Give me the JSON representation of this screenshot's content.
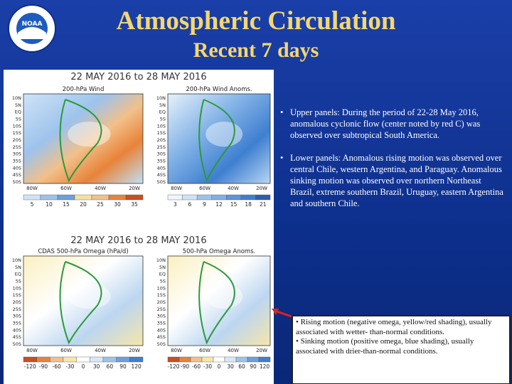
{
  "header": {
    "title": "Atmospheric Circulation",
    "subtitle": "Recent 7 days",
    "logo": "NOAA"
  },
  "figure": {
    "lat_labels": [
      "10N",
      "5N",
      "EQ",
      "5S",
      "10S",
      "15S",
      "20S",
      "25S",
      "30S",
      "35S",
      "40S",
      "45S",
      "50S"
    ],
    "lon_labels": [
      "80W",
      "60W",
      "40W",
      "20W"
    ],
    "upper": {
      "date": "22 MAY 2016 to 28 MAY 2016",
      "panels": [
        {
          "title": "200-hPa Wind",
          "colorbar": [
            "5",
            "10",
            "15",
            "20",
            "25",
            "30",
            "35"
          ]
        },
        {
          "title": "200-hPa Wind Anoms.",
          "colorbar": [
            "3",
            "6",
            "9",
            "12",
            "15",
            "18",
            "21"
          ]
        }
      ]
    },
    "lower": {
      "date": "22 MAY 2016 to 28 MAY 2016",
      "panels": [
        {
          "title": "CDAS 500-hPa Omega (hPa/d)",
          "colorbar": [
            "-120",
            "-90",
            "-60",
            "-30",
            "0",
            "30",
            "60",
            "90",
            "120"
          ]
        },
        {
          "title": "500-hPa Omega Anoms.",
          "colorbar": [
            "-120",
            "-90",
            "-60",
            "-30",
            "0",
            "30",
            "60",
            "90",
            "120"
          ]
        }
      ]
    }
  },
  "bullets": [
    "Upper panels: During the period of 22-28 May 2016, anomalous cyclonic flow (center noted by red C) was observed over subtropical South America.",
    "Lower panels: Anomalous rising motion was observed over central Chile, western Argentina, and Paraguay. Anomalous sinking motion was observed over northern Northeast Brazil, extreme southern Brazil, Uruguay, eastern Argentina and southern Chile."
  ],
  "note": [
    "• Rising motion (negative omega, yellow/red shading), usually associated with wetter- than-normal conditions.",
    "• Sinking motion (positive omega, blue shading), usually associated with drier-than-normal conditions."
  ]
}
